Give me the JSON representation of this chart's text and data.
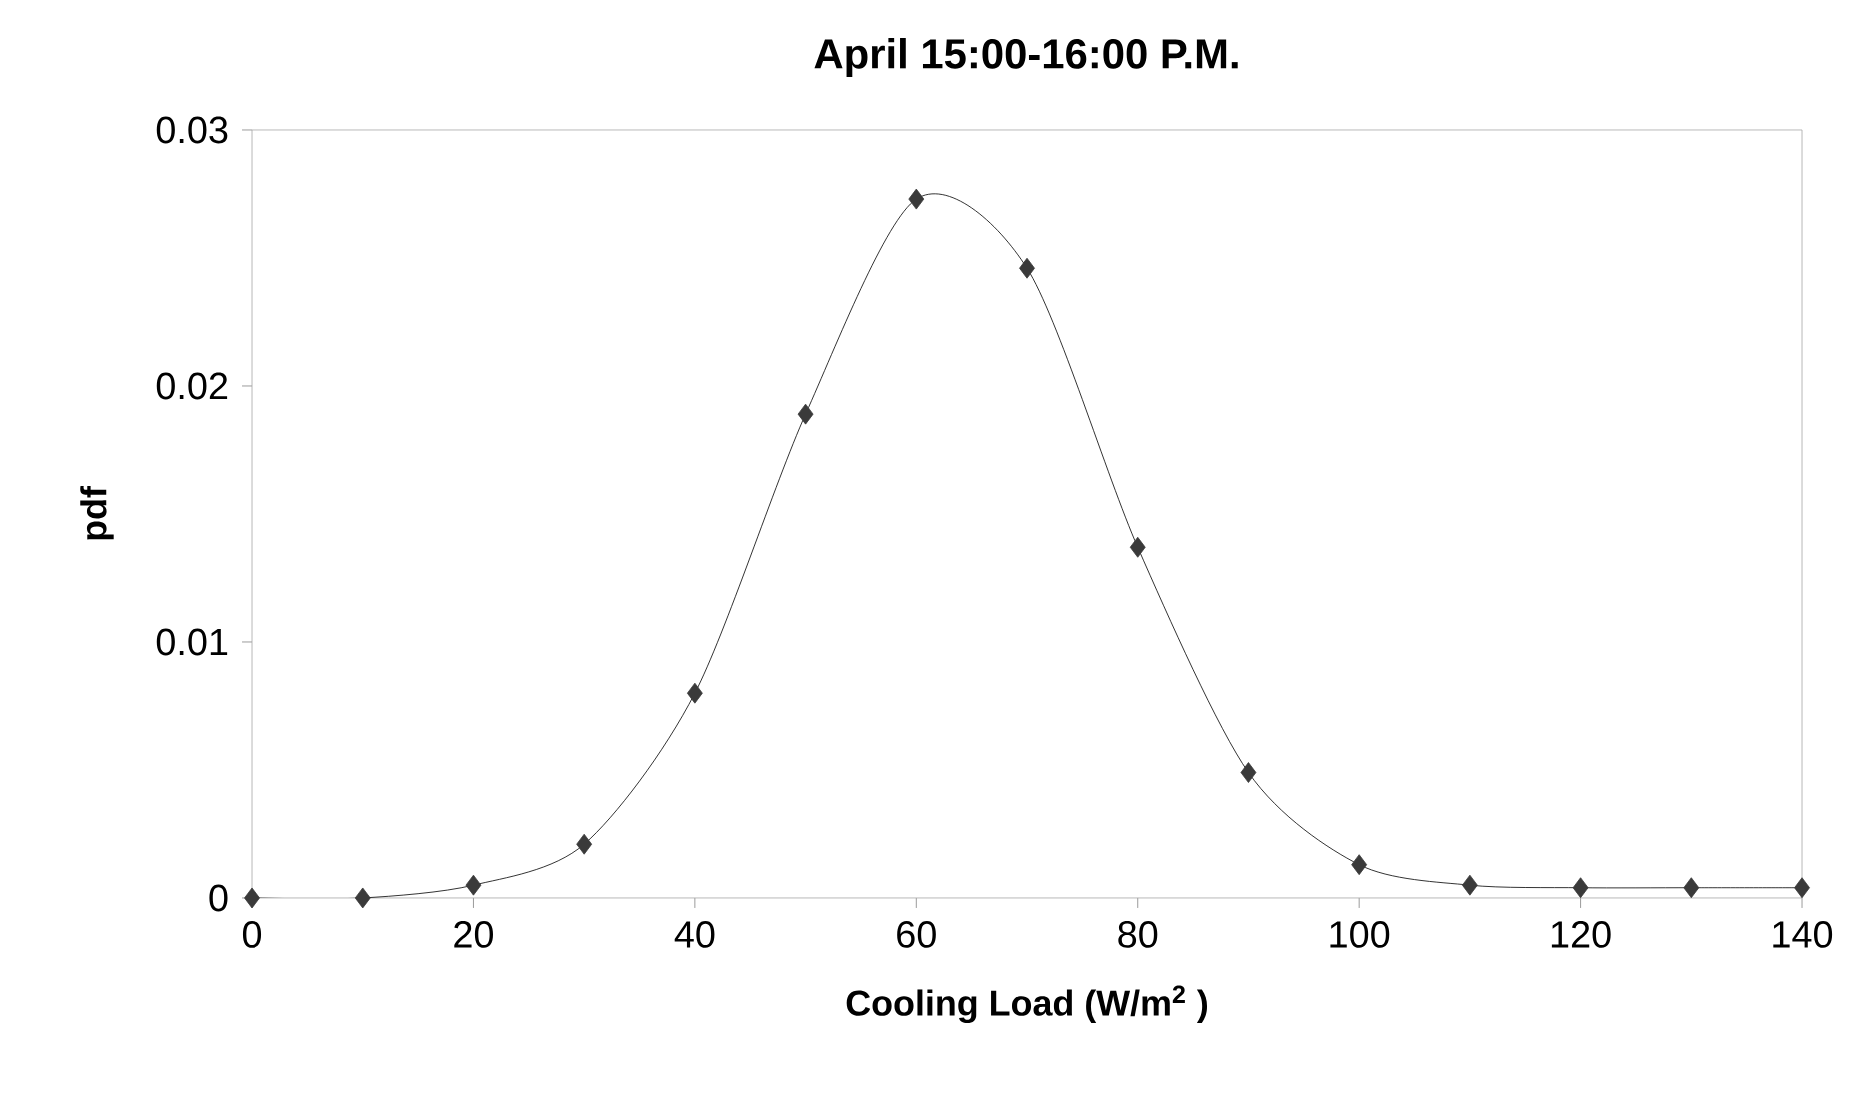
{
  "chart_data": {
    "type": "line",
    "title": "April 15:00-16:00 P.M.",
    "xlabel": "Cooling Load (W/m$^{2}$ )",
    "ylabel": "pdf",
    "x": [
      0,
      10,
      20,
      30,
      40,
      50,
      60,
      70,
      80,
      90,
      100,
      110,
      120,
      130,
      140
    ],
    "series": [
      {
        "color": "#3a3a3a",
        "values": [
          0,
          0,
          0.0005,
          0.0021,
          0.008,
          0.0189,
          0.0273,
          0.0246,
          0.0137,
          0.0049,
          0.0013,
          0.0005,
          0.0004,
          0.0004,
          0.0004
        ]
      }
    ],
    "xlim": [
      0,
      140
    ],
    "xticks": [
      0,
      20,
      40,
      60,
      80,
      100,
      120,
      140
    ],
    "ylim": [
      0,
      0.03
    ],
    "yticks": [
      0,
      0.01,
      0.02,
      0.03
    ],
    "grid": false,
    "marker": "diamond",
    "line_style": "solid"
  }
}
